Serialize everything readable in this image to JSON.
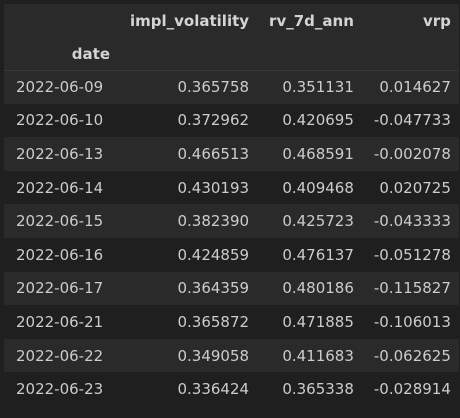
{
  "table": {
    "columns": [
      "impl_volatility",
      "rv_7d_ann",
      "vrp"
    ],
    "index_name": "date",
    "rows": [
      {
        "index": "2022-06-09",
        "cells": [
          "0.365758",
          "0.351131",
          "0.014627"
        ]
      },
      {
        "index": "2022-06-10",
        "cells": [
          "0.372962",
          "0.420695",
          "-0.047733"
        ]
      },
      {
        "index": "2022-06-13",
        "cells": [
          "0.466513",
          "0.468591",
          "-0.002078"
        ]
      },
      {
        "index": "2022-06-14",
        "cells": [
          "0.430193",
          "0.409468",
          "0.020725"
        ]
      },
      {
        "index": "2022-06-15",
        "cells": [
          "0.382390",
          "0.425723",
          "-0.043333"
        ]
      },
      {
        "index": "2022-06-16",
        "cells": [
          "0.424859",
          "0.476137",
          "-0.051278"
        ]
      },
      {
        "index": "2022-06-17",
        "cells": [
          "0.364359",
          "0.480186",
          "-0.115827"
        ]
      },
      {
        "index": "2022-06-21",
        "cells": [
          "0.365872",
          "0.471885",
          "-0.106013"
        ]
      },
      {
        "index": "2022-06-22",
        "cells": [
          "0.349058",
          "0.411683",
          "-0.062625"
        ]
      },
      {
        "index": "2022-06-23",
        "cells": [
          "0.336424",
          "0.365338",
          "-0.028914"
        ]
      }
    ]
  }
}
